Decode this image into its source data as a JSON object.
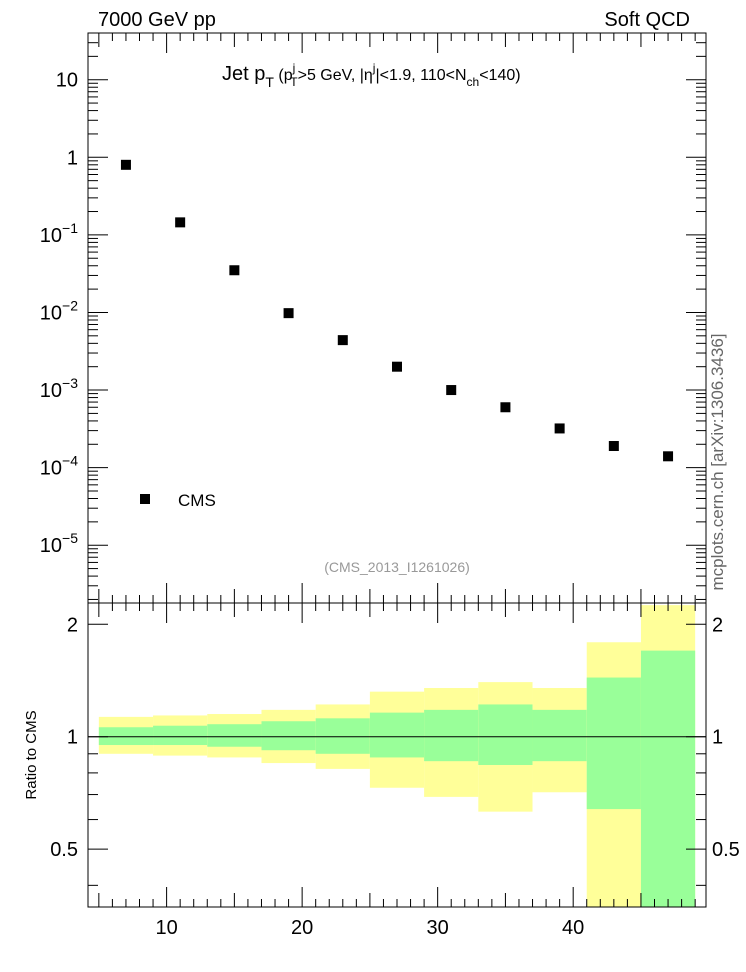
{
  "header": {
    "left": "7000 GeV pp",
    "right": "Soft QCD"
  },
  "side_label": "mcplots.cern.ch [arXiv:1306.3436]",
  "analysis_label": "(CMS_2013_I1261026)",
  "chart_data": [
    {
      "type": "scatter",
      "title_parts": {
        "main": "Jet p",
        "main_sub": "T",
        "open": " (p",
        "p_sub": "T",
        "p_sup": "j",
        "mid": ">5 GeV, |η",
        "eta_sup": "j",
        "mid2": "|<1.9, 110<N",
        "n_sub": "ch",
        "end": "<140)"
      },
      "x": [
        7,
        11,
        15,
        19,
        23,
        27,
        31,
        35,
        39,
        43,
        47
      ],
      "series": [
        {
          "name": "CMS",
          "values": [
            0.8,
            0.145,
            0.035,
            0.0098,
            0.0044,
            0.002,
            0.001,
            0.0006,
            0.00032,
            0.00019,
            0.00014
          ]
        }
      ],
      "xlim": [
        4.2,
        49.8
      ],
      "ylim": [
        1.8e-06,
        40
      ],
      "yscale": "log",
      "yticks": [
        {
          "v": 10,
          "base": "10",
          "exp": ""
        },
        {
          "v": 1,
          "base": "1",
          "exp": ""
        },
        {
          "v": 0.1,
          "base": "10",
          "exp": "−1"
        },
        {
          "v": 0.01,
          "base": "10",
          "exp": "−2"
        },
        {
          "v": 0.001,
          "base": "10",
          "exp": "−3"
        },
        {
          "v": 0.0001,
          "base": "10",
          "exp": "−4"
        },
        {
          "v": 1e-05,
          "base": "10",
          "exp": "−5"
        }
      ],
      "legend": "bottom-left"
    },
    {
      "type": "area",
      "ylabel": "Ratio to CMS",
      "bins": [
        [
          5,
          9
        ],
        [
          9,
          13
        ],
        [
          13,
          17
        ],
        [
          17,
          21
        ],
        [
          21,
          25
        ],
        [
          25,
          29
        ],
        [
          29,
          33
        ],
        [
          33,
          37
        ],
        [
          37,
          41
        ],
        [
          41,
          45
        ],
        [
          45,
          49
        ]
      ],
      "band_inner": [
        [
          0.95,
          1.06
        ],
        [
          0.95,
          1.07
        ],
        [
          0.94,
          1.08
        ],
        [
          0.92,
          1.1
        ],
        [
          0.9,
          1.12
        ],
        [
          0.88,
          1.16
        ],
        [
          0.86,
          1.18
        ],
        [
          0.84,
          1.22
        ],
        [
          0.86,
          1.18
        ],
        [
          0.64,
          1.44
        ],
        [
          0.35,
          1.7
        ]
      ],
      "band_outer": [
        [
          0.9,
          1.13
        ],
        [
          0.89,
          1.14
        ],
        [
          0.88,
          1.15
        ],
        [
          0.85,
          1.18
        ],
        [
          0.82,
          1.22
        ],
        [
          0.73,
          1.32
        ],
        [
          0.69,
          1.35
        ],
        [
          0.63,
          1.4
        ],
        [
          0.71,
          1.35
        ],
        [
          0.35,
          1.79
        ],
        [
          0.35,
          2.25
        ]
      ],
      "xlim": [
        4.2,
        49.8
      ],
      "ylim": [
        0.35,
        2.28
      ],
      "yscale": "log",
      "yticks": [
        {
          "v": 2,
          "label": "2"
        },
        {
          "v": 1,
          "label": "1"
        },
        {
          "v": 0.5,
          "label": "0.5"
        }
      ],
      "xticks": [
        10,
        20,
        30,
        40
      ],
      "colors": {
        "inner": "#99ff99",
        "outer": "#ffff99"
      }
    }
  ]
}
